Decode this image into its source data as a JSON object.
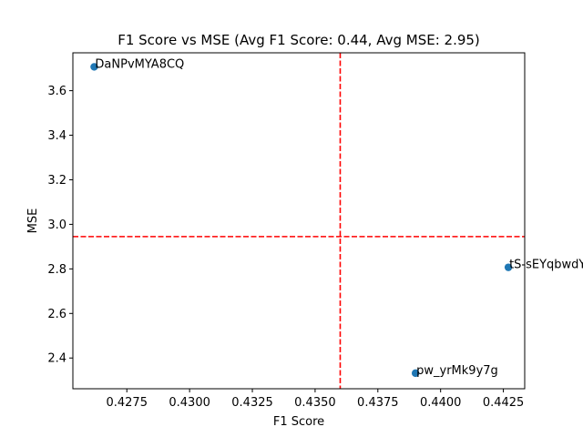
{
  "chart_data": {
    "type": "scatter",
    "title": "F1 Score vs MSE (Avg F1 Score: 0.44, Avg MSE: 2.95)",
    "xlabel": "F1 Score",
    "ylabel": "MSE",
    "xlim": [
      0.42535,
      0.44335
    ],
    "ylim": [
      2.262,
      3.77
    ],
    "xticks": [
      0.4275,
      0.43,
      0.4325,
      0.435,
      0.4375,
      0.44,
      0.4425
    ],
    "xtick_labels": [
      "0.4275",
      "0.4300",
      "0.4325",
      "0.4350",
      "0.4375",
      "0.4400",
      "0.4425"
    ],
    "yticks": [
      2.4,
      2.6,
      2.8,
      3.0,
      3.2,
      3.4,
      3.6
    ],
    "ytick_labels": [
      "2.4",
      "2.6",
      "2.8",
      "3.0",
      "3.2",
      "3.4",
      "3.6"
    ],
    "grid": false,
    "point_color": "#1f77b4",
    "reference_line_color": "#ff0000",
    "points": [
      {
        "label": "DaNPvMYA8CQ",
        "x": 0.4262,
        "y": 3.707
      },
      {
        "label": "tS-sEYqbwdY",
        "x": 0.4427,
        "y": 2.807
      },
      {
        "label": "pw_yrMk9y7g",
        "x": 0.439,
        "y": 2.332
      }
    ],
    "reference_lines": {
      "vertical_x": 0.436,
      "horizontal_y": 2.945
    }
  }
}
